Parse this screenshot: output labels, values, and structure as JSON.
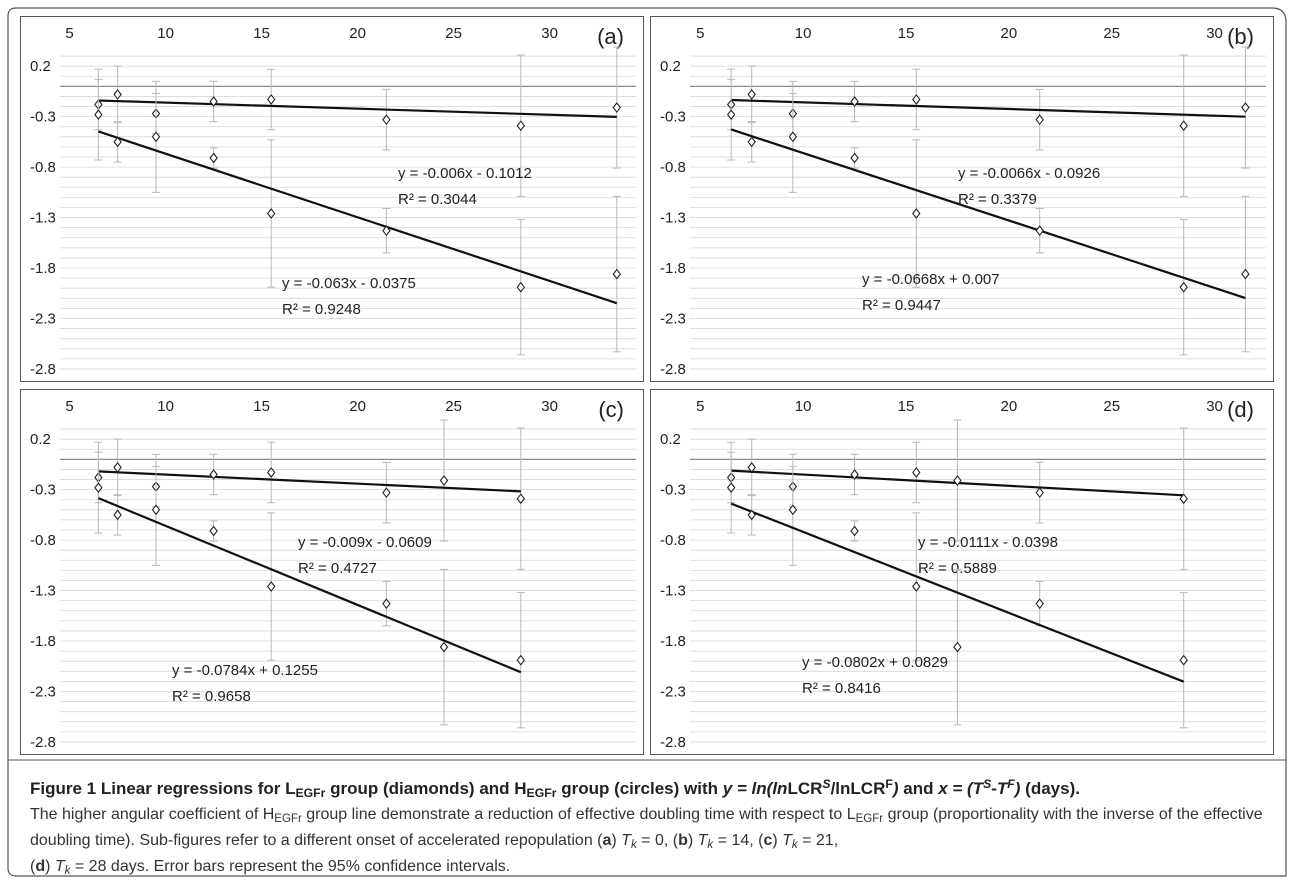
{
  "chart_data": [
    {
      "type": "scatter",
      "panel_label": "(a)",
      "x_ticks": [
        5,
        10,
        15,
        20,
        25,
        30
      ],
      "y_ticks": [
        0.2,
        -0.3,
        -0.8,
        -1.3,
        -1.8,
        -2.3,
        -2.8
      ],
      "y_tick_labels": [
        "0.2",
        "-0.3",
        "-0.8",
        "-1.3",
        "-1.8",
        "-2.3",
        "-2.8"
      ],
      "xlim": [
        4.5,
        34.5
      ],
      "ylim": [
        -2.85,
        0.38
      ],
      "grid": true,
      "series": [
        {
          "marker": "diamond",
          "x": [
            6.5,
            7.5,
            9.5,
            12.5,
            15.5,
            21.5,
            28.5,
            33.5
          ],
          "y": [
            -0.18,
            -0.08,
            -0.27,
            -0.15,
            -0.13,
            -0.33,
            -0.39,
            -0.21
          ],
          "err": [
            0.25,
            0.28,
            0.2,
            0.2,
            0.3,
            0.3,
            0.7,
            0.6
          ],
          "fit": {
            "slope": -0.006,
            "intercept": -0.1012,
            "equation": "y = -0.006x - 0.1012",
            "r2": "R² = 0.3044"
          }
        },
        {
          "marker": "circle",
          "x": [
            6.5,
            7.5,
            9.5,
            12.5,
            15.5,
            21.5,
            28.5,
            33.5
          ],
          "y": [
            -0.28,
            -0.55,
            -0.5,
            -0.71,
            -1.26,
            -1.43,
            -1.99,
            -1.86
          ],
          "err": [
            0.45,
            0.2,
            0.55,
            0.1,
            0.73,
            0.22,
            0.67,
            0.77
          ],
          "fit": {
            "slope": -0.063,
            "intercept": -0.0375,
            "equation": "y = -0.063x - 0.0375",
            "r2": "R² = 0.9248"
          }
        }
      ]
    },
    {
      "type": "scatter",
      "panel_label": "(b)",
      "x_ticks": [
        5,
        10,
        15,
        20,
        25,
        30
      ],
      "y_ticks": [
        0.2,
        -0.3,
        -0.8,
        -1.3,
        -1.8,
        -2.3,
        -2.8
      ],
      "y_tick_labels": [
        "0.2",
        "-0.3",
        "-0.8",
        "-1.3",
        "-1.8",
        "-2.3",
        "-2.8"
      ],
      "xlim": [
        4.5,
        32.5
      ],
      "ylim": [
        -2.85,
        0.38
      ],
      "grid": true,
      "series": [
        {
          "marker": "diamond",
          "x": [
            6.5,
            7.5,
            9.5,
            12.5,
            15.5,
            21.5,
            28.5,
            31.5
          ],
          "y": [
            -0.18,
            -0.08,
            -0.27,
            -0.15,
            -0.13,
            -0.33,
            -0.39,
            -0.21
          ],
          "err": [
            0.25,
            0.28,
            0.2,
            0.2,
            0.3,
            0.3,
            0.7,
            0.6
          ],
          "fit": {
            "slope": -0.0066,
            "intercept": -0.0926,
            "equation": "y = -0.0066x - 0.0926",
            "r2": "R² = 0.3379"
          }
        },
        {
          "marker": "circle",
          "x": [
            6.5,
            7.5,
            9.5,
            12.5,
            15.5,
            21.5,
            28.5,
            31.5
          ],
          "y": [
            -0.28,
            -0.55,
            -0.5,
            -0.71,
            -1.26,
            -1.43,
            -1.99,
            -1.86
          ],
          "err": [
            0.45,
            0.2,
            0.55,
            0.1,
            0.73,
            0.22,
            0.67,
            0.77
          ],
          "fit": {
            "slope": -0.0668,
            "intercept": 0.007,
            "equation": "y = -0.0668x + 0.007",
            "r2": "R² = 0.9447"
          }
        }
      ]
    },
    {
      "type": "scatter",
      "panel_label": "(c)",
      "x_ticks": [
        5,
        10,
        15,
        20,
        25,
        30
      ],
      "y_ticks": [
        0.2,
        -0.3,
        -0.8,
        -1.3,
        -1.8,
        -2.3,
        -2.8
      ],
      "y_tick_labels": [
        "0.2",
        "-0.3",
        "-0.8",
        "-1.3",
        "-1.8",
        "-2.3",
        "-2.8"
      ],
      "xlim": [
        4.5,
        34.5
      ],
      "ylim": [
        -2.85,
        0.38
      ],
      "grid": true,
      "series": [
        {
          "marker": "diamond",
          "x": [
            6.5,
            7.5,
            9.5,
            12.5,
            15.5,
            21.5,
            24.5,
            28.5
          ],
          "y": [
            -0.18,
            -0.08,
            -0.27,
            -0.15,
            -0.13,
            -0.33,
            -0.21,
            -0.39
          ],
          "err": [
            0.25,
            0.28,
            0.2,
            0.2,
            0.3,
            0.3,
            0.6,
            0.7
          ],
          "fit": {
            "slope": -0.009,
            "intercept": -0.0609,
            "equation": "y = -0.009x - 0.0609",
            "r2": "R² = 0.4727"
          }
        },
        {
          "marker": "circle",
          "x": [
            6.5,
            7.5,
            9.5,
            12.5,
            15.5,
            21.5,
            24.5,
            28.5
          ],
          "y": [
            -0.28,
            -0.55,
            -0.5,
            -0.71,
            -1.26,
            -1.43,
            -1.86,
            -1.99
          ],
          "err": [
            0.45,
            0.2,
            0.55,
            0.1,
            0.73,
            0.22,
            0.77,
            0.67
          ],
          "fit": {
            "slope": -0.0784,
            "intercept": 0.1255,
            "equation": "y = -0.0784x + 0.1255",
            "r2": "R² = 0.9658"
          }
        }
      ]
    },
    {
      "type": "scatter",
      "panel_label": "(d)",
      "x_ticks": [
        5,
        10,
        15,
        20,
        25,
        30
      ],
      "y_ticks": [
        0.2,
        -0.3,
        -0.8,
        -1.3,
        -1.8,
        -2.3,
        -2.8
      ],
      "y_tick_labels": [
        "0.2",
        "-0.3",
        "-0.8",
        "-1.3",
        "-1.8",
        "-2.3",
        "-2.8"
      ],
      "xlim": [
        4.5,
        32.5
      ],
      "ylim": [
        -2.85,
        0.38
      ],
      "grid": true,
      "series": [
        {
          "marker": "diamond",
          "x": [
            6.5,
            7.5,
            9.5,
            12.5,
            15.5,
            17.5,
            21.5,
            28.5
          ],
          "y": [
            -0.18,
            -0.08,
            -0.27,
            -0.15,
            -0.13,
            -0.21,
            -0.33,
            -0.39
          ],
          "err": [
            0.25,
            0.28,
            0.2,
            0.2,
            0.3,
            0.6,
            0.3,
            0.7
          ],
          "fit": {
            "slope": -0.0111,
            "intercept": -0.0398,
            "equation": "y = -0.0111x - 0.0398",
            "r2": "R² = 0.5889"
          }
        },
        {
          "marker": "circle",
          "x": [
            6.5,
            7.5,
            9.5,
            12.5,
            15.5,
            17.5,
            21.5,
            28.5
          ],
          "y": [
            -0.28,
            -0.55,
            -0.5,
            -0.71,
            -1.26,
            -1.86,
            -1.43,
            -1.99
          ],
          "err": [
            0.45,
            0.2,
            0.55,
            0.1,
            0.73,
            0.77,
            0.22,
            0.67
          ],
          "fit": {
            "slope": -0.0802,
            "intercept": 0.0829,
            "equation": "y = -0.0802x + 0.0829",
            "r2": "R² = 0.8416"
          }
        }
      ]
    }
  ],
  "caption": {
    "fig_label": "Figure 1",
    "title_part1": " Linear regressions for L",
    "title_sub1": "EGFr",
    "title_part2": " group (diamonds) and H",
    "title_sub2": "EGFr",
    "title_part3": " group (circles) with ",
    "y_eq_prefix": "y = ln(ln",
    "lcr_s": "LCR",
    "sup_s": "S",
    "slash_ln": "/ln",
    "lcr_f": "LCR",
    "sup_f": "F",
    "eq_close": ")",
    "and_text": " and ",
    "x_eq_prefix": "x = (T",
    "x_sup_s": "S",
    "x_minus": "-T",
    "x_sup_f": "F",
    "x_close": ")",
    "days": " (days).",
    "body1": " The higher angular coefficient of H",
    "body1_sub": "EGFr",
    "body2": " group line demonstrate a reduction of effective doubling time with respect to L",
    "body2_sub": "EGFr",
    "body3": " group (proportionality with the inverse of the effective doubling time). Sub-figures refer to a different onset of accelerated repopulation (",
    "lab_a": "a",
    "after_a": ") ",
    "tk_a": "T",
    "tk_a_sub": "k",
    "tk_a_val": " = 0, (",
    "lab_b": "b",
    "after_b": ") ",
    "tk_b": "T",
    "tk_b_sub": "k",
    "tk_b_val": " = 14, (",
    "lab_c": "c",
    "after_c": ") ",
    "tk_c": "T",
    "tk_c_sub": "k",
    "tk_c_val": " = 21,",
    "open_d": "(",
    "lab_d": "d",
    "after_d": ") ",
    "tk_d": "T",
    "tk_d_sub": "k",
    "tk_d_val": " = 28 days. Error bars represent the 95% confidence intervals."
  }
}
